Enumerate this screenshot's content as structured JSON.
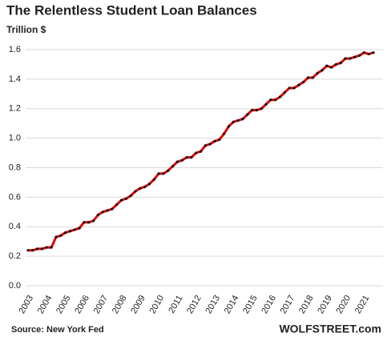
{
  "chart_data": {
    "type": "line",
    "title": "The Relentless Student Loan Balances",
    "subtitle": "Trillion $",
    "source": "Source: New York Fed",
    "brand": "WOLFSTREET.com",
    "categories": [
      "2003",
      null,
      null,
      null,
      "2004",
      null,
      null,
      null,
      "2005",
      null,
      null,
      null,
      "2006",
      null,
      null,
      null,
      "2007",
      null,
      null,
      null,
      "2008",
      null,
      null,
      null,
      "2009",
      null,
      null,
      null,
      "2010",
      null,
      null,
      null,
      "2011",
      null,
      null,
      null,
      "2012",
      null,
      null,
      null,
      "2013",
      null,
      null,
      null,
      "2014",
      null,
      null,
      null,
      "2015",
      null,
      null,
      null,
      "2016",
      null,
      null,
      null,
      "2017",
      null,
      null,
      null,
      "2018",
      null,
      null,
      null,
      "2019",
      null,
      null,
      null,
      "2020",
      null,
      null,
      null,
      "2021",
      null,
      null
    ],
    "series": [
      {
        "name": "Student loan balances",
        "color": "#e00000",
        "marker_color": "#111111",
        "values": [
          0.24,
          0.24,
          0.25,
          0.25,
          0.26,
          0.26,
          0.33,
          0.34,
          0.36,
          0.37,
          0.38,
          0.39,
          0.43,
          0.43,
          0.44,
          0.48,
          0.5,
          0.51,
          0.52,
          0.55,
          0.58,
          0.59,
          0.61,
          0.64,
          0.66,
          0.67,
          0.69,
          0.72,
          0.76,
          0.76,
          0.78,
          0.81,
          0.84,
          0.85,
          0.87,
          0.87,
          0.9,
          0.91,
          0.95,
          0.96,
          0.98,
          0.99,
          1.03,
          1.08,
          1.11,
          1.12,
          1.13,
          1.16,
          1.19,
          1.19,
          1.2,
          1.23,
          1.26,
          1.26,
          1.28,
          1.31,
          1.34,
          1.34,
          1.36,
          1.38,
          1.41,
          1.41,
          1.44,
          1.46,
          1.49,
          1.48,
          1.5,
          1.51,
          1.54,
          1.54,
          1.55,
          1.56,
          1.58,
          1.57,
          1.58
        ]
      }
    ],
    "ylim": [
      0,
      1.6
    ],
    "yticks": [
      {
        "value": 0,
        "label": "0.0"
      },
      {
        "value": 0.2,
        "label": "0.2"
      },
      {
        "value": 0.4,
        "label": "0.4"
      },
      {
        "value": 0.6,
        "label": "0.6"
      },
      {
        "value": 0.8,
        "label": "0.8"
      },
      {
        "value": 1,
        "label": "1.0"
      },
      {
        "value": 1.2,
        "label": "1.2"
      },
      {
        "value": 1.4,
        "label": "1.4"
      },
      {
        "value": 1.6,
        "label": "1.6"
      }
    ],
    "grid": true
  }
}
